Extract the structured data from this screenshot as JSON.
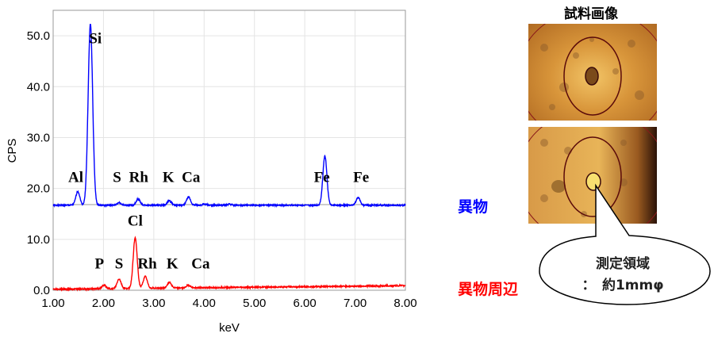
{
  "chart_data": {
    "type": "line",
    "xlabel": "keV",
    "ylabel": "CPS",
    "xlim": [
      1.0,
      8.0
    ],
    "ylim": [
      0,
      55
    ],
    "xticks": [
      "1.00",
      "2.00",
      "3.00",
      "4.00",
      "5.00",
      "6.00",
      "7.00",
      "8.00"
    ],
    "yticks": [
      "0.0",
      "10.0",
      "20.0",
      "30.0",
      "40.0",
      "50.0"
    ],
    "grid": true,
    "series": [
      {
        "name": "異物",
        "color": "#0000ff",
        "baseline": [
          16.7,
          16.7
        ],
        "peaks": [
          {
            "x": 1.49,
            "y": 19.4
          },
          {
            "x": 1.74,
            "y": 52.3
          },
          {
            "x": 2.31,
            "y": 17.2
          },
          {
            "x": 2.69,
            "y": 17.9
          },
          {
            "x": 3.31,
            "y": 17.6
          },
          {
            "x": 3.69,
            "y": 18.3
          },
          {
            "x": 4.01,
            "y": 16.9
          },
          {
            "x": 4.51,
            "y": 16.9
          },
          {
            "x": 6.4,
            "y": 26.4
          },
          {
            "x": 7.06,
            "y": 18.2
          }
        ],
        "annotations": [
          "Al",
          "Si",
          "S",
          "Rh",
          "K",
          "Ca",
          "Fe",
          "Fe"
        ]
      },
      {
        "name": "異物周辺",
        "color": "#ff0000",
        "baseline": [
          0.2,
          0.9
        ],
        "peaks": [
          {
            "x": 2.01,
            "y": 1.0
          },
          {
            "x": 2.31,
            "y": 2.2
          },
          {
            "x": 2.63,
            "y": 10.3
          },
          {
            "x": 2.83,
            "y": 2.7
          },
          {
            "x": 3.31,
            "y": 1.6
          },
          {
            "x": 3.69,
            "y": 1.0
          }
        ],
        "annotations": [
          "P",
          "S",
          "Cl",
          "Rh",
          "K",
          "Ca"
        ]
      }
    ]
  },
  "images": {
    "title": "試料画像",
    "callout_line1": "測定領域",
    "callout_line2": "：　約1mmφ"
  }
}
